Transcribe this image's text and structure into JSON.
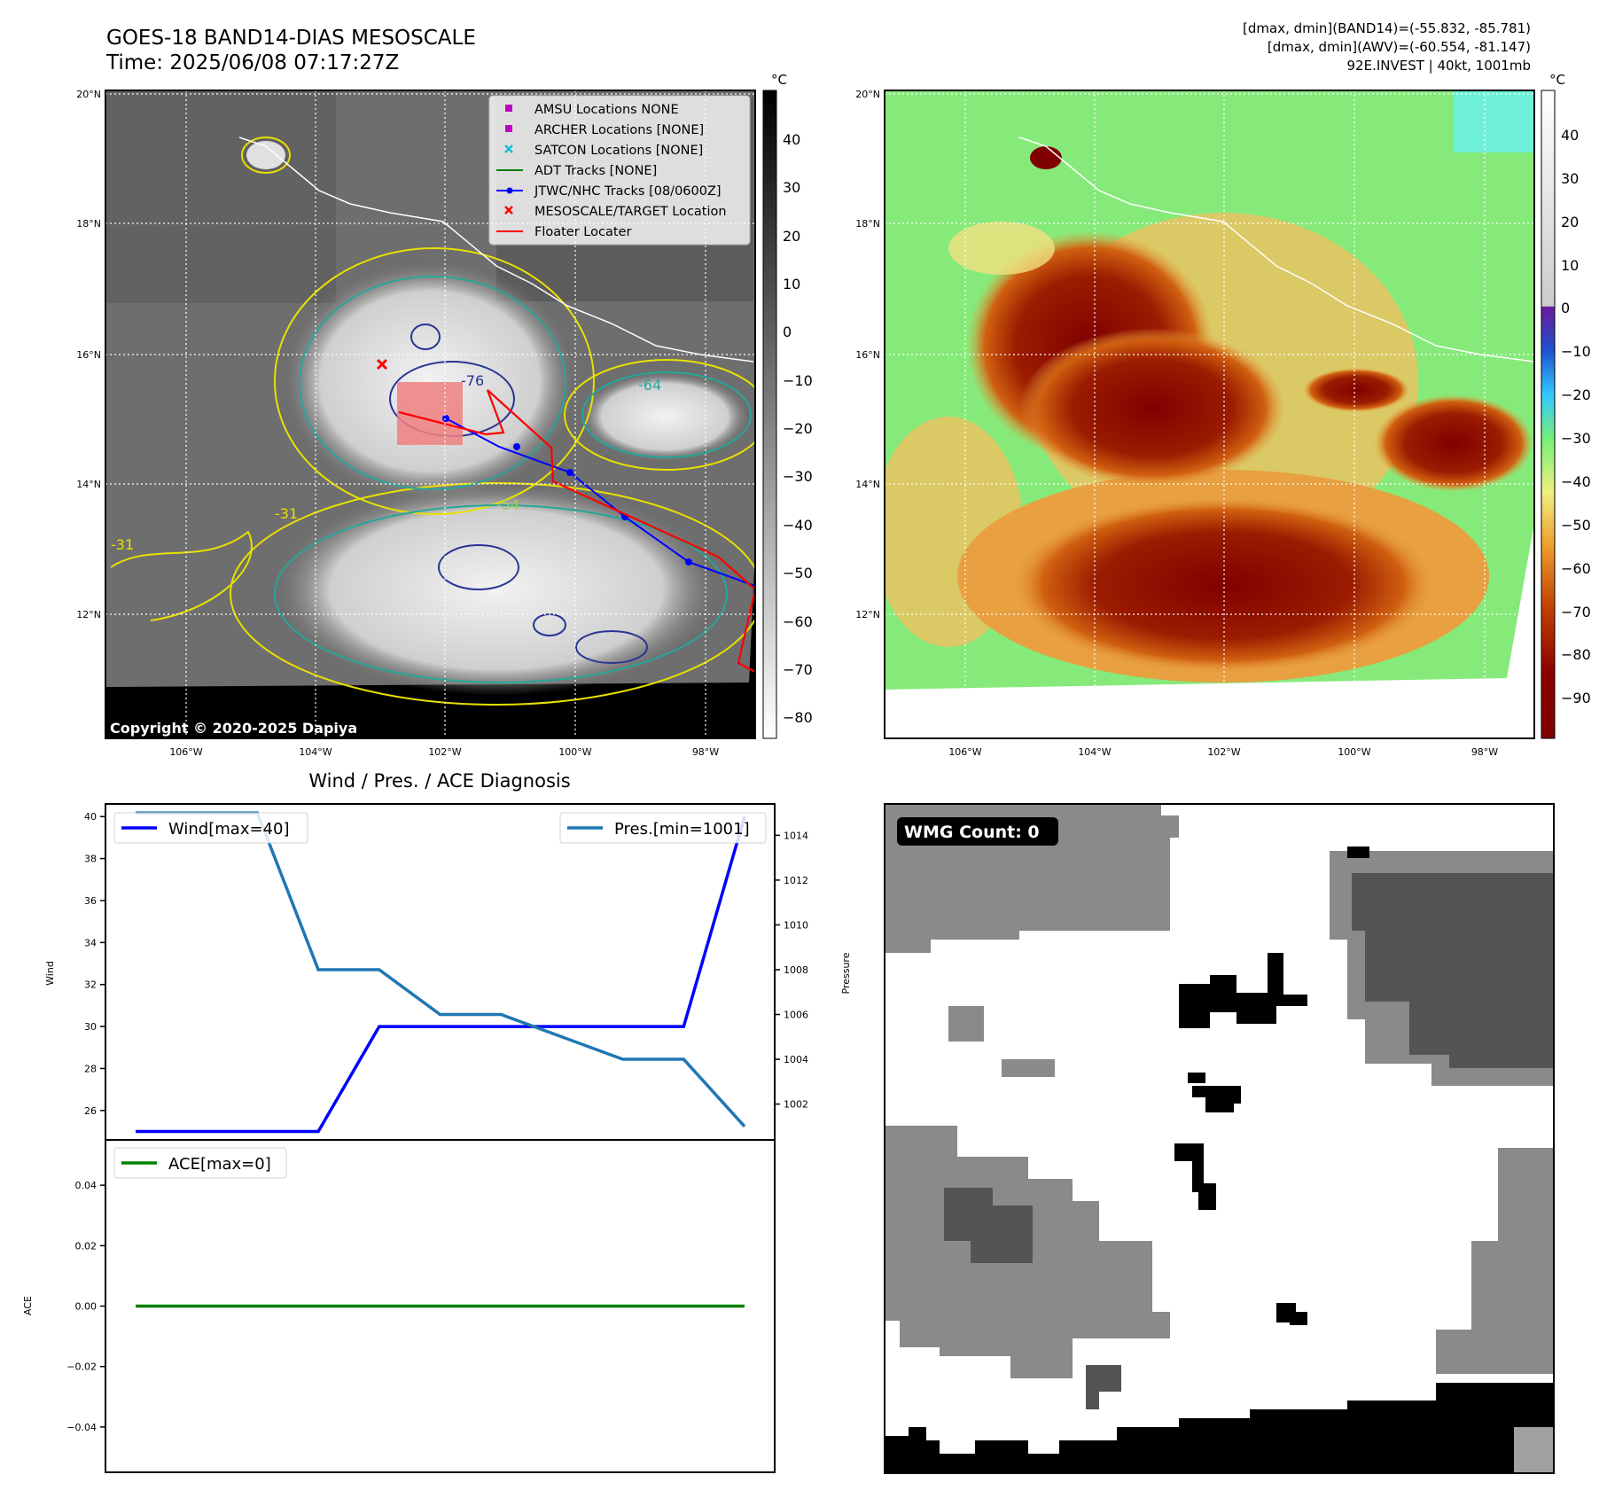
{
  "header": {
    "title_line1": "GOES-18 BAND14-DIAS MESOSCALE",
    "title_line2": "Time: 2025/06/08 07:17:27Z",
    "stats_line1": "[dmax, dmin](BAND14)=(-55.832, -85.781)",
    "stats_line2": "[dmax, dmin](AWV)=(-60.554, -81.147)",
    "stats_line3": "92E.INVEST | 40kt, 1001mb"
  },
  "maps": {
    "lat_labels": [
      "20°N",
      "18°N",
      "16°N",
      "14°N",
      "12°N"
    ],
    "lon_labels": [
      "106°W",
      "104°W",
      "102°W",
      "100°W",
      "98°W"
    ],
    "copyright": "Copyright © 2020-2025 Dapiya",
    "legend": [
      {
        "label": "AMSU Locations NONE",
        "color": "#c000c0",
        "marker": "square"
      },
      {
        "label": "ARCHER Locations [NONE]",
        "color": "#c000c0",
        "marker": "square"
      },
      {
        "label": "SATCON Locations [NONE]",
        "color": "#17becf",
        "marker": "x"
      },
      {
        "label": "ADT Tracks [NONE]",
        "color": "#008000",
        "marker": "line"
      },
      {
        "label": "JTWC/NHC Tracks [08/0600Z]",
        "color": "#0000ff",
        "marker": "line-dot"
      },
      {
        "label": "MESOSCALE/TARGET Location",
        "color": "#ff0000",
        "marker": "x"
      },
      {
        "label": "Floater Locater",
        "color": "#ff0000",
        "marker": "line"
      }
    ],
    "contour_labels": [
      "-31",
      "-54",
      "-64",
      "-76"
    ],
    "ir_colorbar": {
      "unit": "°C",
      "ticks": [
        "40",
        "30",
        "20",
        "10",
        "0",
        "−10",
        "−20",
        "−30",
        "−40",
        "−50",
        "−60",
        "−70",
        "−80"
      ]
    },
    "wv_colorbar": {
      "unit": "°C",
      "ticks": [
        "40",
        "30",
        "20",
        "10",
        "0",
        "−10",
        "−20",
        "−30",
        "−40",
        "−50",
        "−60",
        "−70",
        "−80",
        "−90"
      ]
    },
    "track_color": "#0000ff",
    "floater_color": "#ff0000"
  },
  "wmg": {
    "count_label": "WMG Count: 0"
  },
  "chart_data": [
    {
      "type": "line",
      "title": "Wind / Pres. / ACE Diagnosis",
      "xlabel": "",
      "ylabel": "Wind",
      "ylabel_right": "Pressure",
      "ylim": [
        24.6,
        40.6
      ],
      "ylim_right": [
        1000.4,
        1015.4
      ],
      "y_ticks": [
        "40",
        "38",
        "36",
        "34",
        "32",
        "30",
        "28",
        "26"
      ],
      "y_ticks_right": [
        "1014",
        "1012",
        "1010",
        "1008",
        "1006",
        "1004",
        "1002"
      ],
      "x": [
        0,
        1,
        2,
        3,
        4,
        5,
        6,
        7,
        8,
        9,
        10
      ],
      "series": [
        {
          "name": "Wind[max=40]",
          "axis": "left",
          "color": "#0000ff",
          "values": [
            25,
            25,
            25,
            25,
            30,
            30,
            30,
            30,
            30,
            30,
            40
          ]
        },
        {
          "name": "Pres.[min=1001]",
          "axis": "right",
          "color": "#1f77b4",
          "values": [
            1015,
            1015,
            1015,
            1008,
            1008,
            1006,
            1006,
            1005,
            1004,
            1004,
            1001
          ]
        }
      ]
    },
    {
      "type": "line",
      "title": "",
      "xlabel": "",
      "ylabel": "ACE",
      "ylim": [
        -0.055,
        0.055
      ],
      "y_ticks": [
        "0.04",
        "0.02",
        "0.00",
        "−0.02",
        "−0.04"
      ],
      "x": [
        0,
        1,
        2,
        3,
        4,
        5,
        6,
        7,
        8,
        9,
        10
      ],
      "series": [
        {
          "name": "ACE[max=0]",
          "color": "#008000",
          "values": [
            0,
            0,
            0,
            0,
            0,
            0,
            0,
            0,
            0,
            0,
            0
          ]
        }
      ]
    }
  ]
}
